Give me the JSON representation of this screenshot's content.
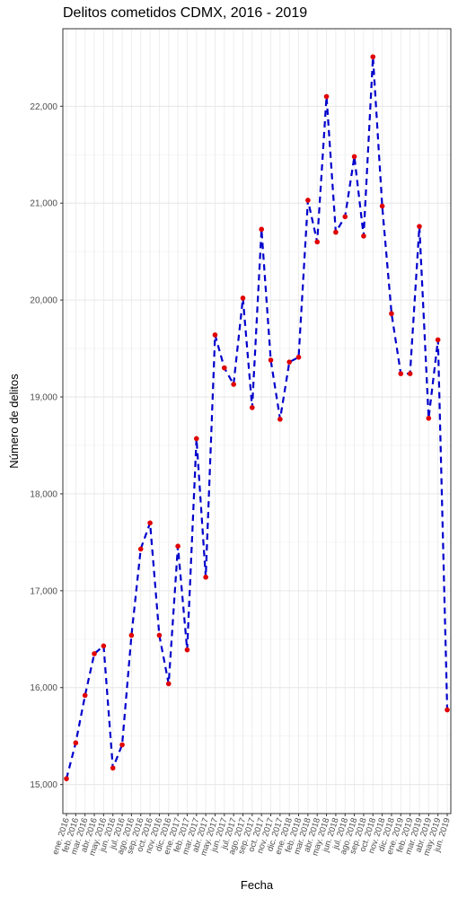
{
  "chart_data": {
    "type": "line",
    "title": "Delitos cometidos CDMX, 2016 - 2019",
    "xlabel": "Fecha",
    "ylabel": "Número de delitos",
    "ylim": [
      14700,
      22800
    ],
    "y_ticks": [
      15000,
      16000,
      17000,
      18000,
      19000,
      20000,
      21000,
      22000
    ],
    "y_tick_labels": [
      "15,000",
      "16,000",
      "17,000",
      "18,000",
      "19,000",
      "20,000",
      "21,000",
      "22,000"
    ],
    "grid": true,
    "x": [
      "ene. 2016",
      "feb. 2016",
      "mar. 2016",
      "abr. 2016",
      "may. 2016",
      "jun. 2016",
      "jul. 2016",
      "ago. 2016",
      "sep. 2016",
      "oct. 2016",
      "nov. 2016",
      "dic. 2016",
      "ene. 2017",
      "feb. 2017",
      "mar. 2017",
      "abr. 2017",
      "may. 2017",
      "jun. 2017",
      "jul. 2017",
      "ago. 2017",
      "sep. 2017",
      "oct. 2017",
      "nov. 2017",
      "dic. 2017",
      "ene. 2018",
      "feb. 2018",
      "mar. 2018",
      "abr. 2018",
      "may. 2018",
      "jun. 2018",
      "jul. 2018",
      "ago. 2018",
      "sep. 2018",
      "oct. 2018",
      "nov. 2018",
      "dic. 2018",
      "ene. 2019",
      "feb. 2019",
      "mar. 2019",
      "abr. 2019",
      "may. 2019",
      "jun. 2019"
    ],
    "series": [
      {
        "values": [
          15060,
          15430,
          15920,
          16350,
          16430,
          15170,
          15410,
          16540,
          17430,
          17700,
          16540,
          16040,
          17460,
          16390,
          18570,
          17140,
          19640,
          19300,
          19130,
          20020,
          18890,
          20730,
          19380,
          18770,
          19360,
          19410,
          21030,
          20600,
          22100,
          20700,
          20860,
          21480,
          20660,
          22510,
          20970,
          19860,
          19240,
          19240,
          20760,
          18780,
          19590,
          15770
        ],
        "line_color": "#0000cc",
        "point_color": "#e00000"
      }
    ]
  }
}
